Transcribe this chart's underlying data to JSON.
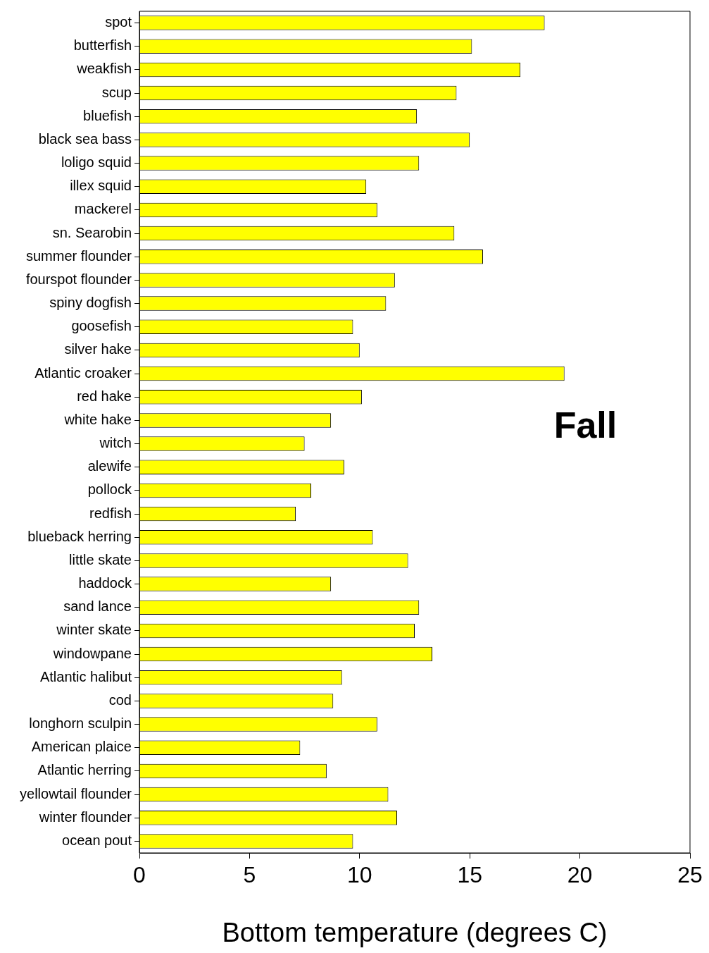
{
  "chart_data": {
    "type": "bar",
    "orientation": "horizontal",
    "xlabel": "Bottom temperature (degrees C)",
    "annotations": [
      "Fall"
    ],
    "categories": [
      "spot",
      "butterfish",
      "weakfish",
      "scup",
      "bluefish",
      "black sea bass",
      "loligo squid",
      "illex squid",
      "mackerel",
      "sn. Searobin",
      "summer flounder",
      "fourspot flounder",
      "spiny dogfish",
      "goosefish",
      "silver hake",
      "Atlantic croaker",
      "red hake",
      "white hake",
      "witch",
      "alewife",
      "pollock",
      "redfish",
      "blueback herring",
      "little skate",
      "haddock",
      "sand lance",
      "winter skate",
      "windowpane",
      "Atlantic halibut",
      "cod",
      "longhorn sculpin",
      "American plaice",
      "Atlantic herring",
      "yellowtail flounder",
      "winter flounder",
      "ocean pout"
    ],
    "values": [
      18.4,
      15.1,
      17.3,
      14.4,
      12.6,
      15.0,
      12.7,
      10.3,
      10.8,
      14.3,
      15.6,
      11.6,
      11.2,
      9.7,
      10.0,
      19.3,
      10.1,
      8.7,
      7.5,
      9.3,
      7.8,
      7.1,
      10.6,
      12.2,
      8.7,
      12.7,
      12.5,
      13.3,
      9.2,
      8.8,
      10.8,
      7.3,
      8.5,
      11.3,
      11.7,
      9.7
    ],
    "color": "#ffff00",
    "xlim": [
      0,
      25
    ],
    "xticks": [
      0,
      5,
      10,
      15,
      20,
      25
    ],
    "grid": false
  }
}
